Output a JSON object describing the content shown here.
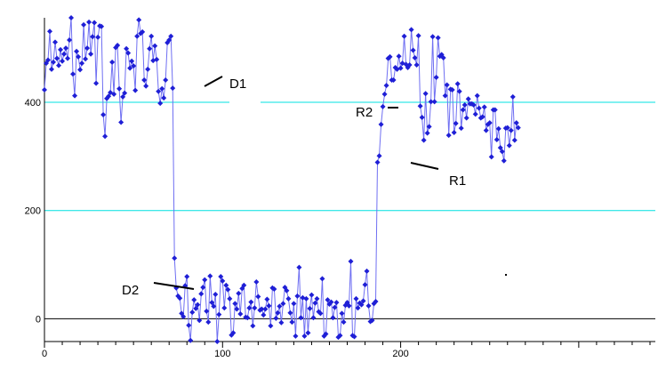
{
  "chart_data": {
    "type": "line",
    "title": "",
    "xlabel": "",
    "ylabel": "",
    "xlim": [
      0,
      343
    ],
    "ylim": [
      -42,
      556
    ],
    "x_ticks": [
      0,
      100,
      200
    ],
    "y_ticks": [
      0,
      200,
      400
    ],
    "grid": "horizontal",
    "colors": {
      "series": "#1f1fd6",
      "line": "#6f6ff2",
      "gridline": "#00e0e0",
      "zero_line": "#000000"
    },
    "annotations": [
      {
        "text": "D1",
        "x": 103,
        "y": 437
      },
      {
        "text": "D2",
        "x": 43,
        "y": 54
      },
      {
        "text": "R1",
        "x": 227,
        "y": 258
      },
      {
        "text": "R2",
        "x": 172,
        "y": 383
      }
    ],
    "series": [
      {
        "x_start": 0,
        "values": [
          423,
          472,
          478,
          531,
          461,
          474,
          511,
          481,
          468,
          497,
          476,
          489,
          500,
          481,
          515,
          556,
          452,
          412,
          494,
          484,
          460,
          472,
          543,
          480,
          500,
          548,
          489,
          521,
          547,
          435,
          520,
          541,
          540,
          377,
          337,
          407,
          411,
          418,
          474,
          415,
          501,
          505,
          425,
          363,
          410,
          417,
          499,
          491,
          463,
          476,
          467,
          422,
          522,
          552,
          527,
          530,
          441,
          430,
          461,
          499,
          522,
          477,
          504,
          479,
          420,
          398,
          425,
          408,
          441,
          510,
          515,
          522,
          426,
          112,
          57,
          42,
          38,
          10,
          4,
          61,
          78,
          -12,
          -40,
          12,
          35,
          19,
          26,
          -3,
          46,
          58,
          72,
          14,
          -6,
          79,
          30,
          23,
          45,
          -42,
          8,
          78,
          70,
          20,
          62,
          54,
          37,
          -30,
          -26,
          28,
          18,
          47,
          9,
          56,
          62,
          3,
          2,
          20,
          31,
          -13,
          20,
          68,
          41,
          16,
          18,
          7,
          18,
          36,
          24,
          -13,
          57,
          55,
          1,
          11,
          23,
          -7,
          28,
          58,
          52,
          37,
          11,
          -6,
          28,
          -32,
          42,
          95,
          2,
          39,
          -32,
          37,
          -26,
          19,
          44,
          2,
          29,
          37,
          13,
          10,
          74,
          -32,
          -28,
          35,
          27,
          31,
          2,
          21,
          30,
          -34,
          -31,
          10,
          -6,
          25,
          30,
          24,
          106,
          -31,
          -33,
          37,
          20,
          29,
          26,
          33,
          63,
          88,
          24,
          -5,
          -3,
          28,
          32,
          289,
          301,
          359,
          392,
          415,
          431,
          481,
          484,
          441,
          441,
          464,
          461,
          485,
          463,
          472,
          522,
          470,
          464,
          469,
          534,
          496,
          482,
          469,
          523,
          393,
          372,
          330,
          416,
          343,
          355,
          401,
          521,
          401,
          446,
          519,
          485,
          488,
          482,
          412,
          432,
          339,
          424,
          423,
          344,
          361,
          434,
          420,
          352,
          386,
          395,
          371,
          406,
          397,
          397,
          395,
          378,
          412,
          389,
          371,
          373,
          391,
          348,
          359,
          362,
          299,
          386,
          386,
          331,
          351,
          316,
          309,
          292,
          352,
          353,
          320,
          348,
          410,
          330,
          362,
          353
        ]
      }
    ]
  }
}
